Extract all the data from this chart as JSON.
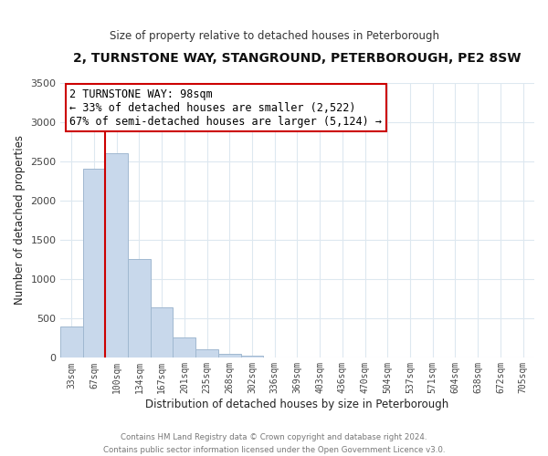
{
  "title": "2, TURNSTONE WAY, STANGROUND, PETERBOROUGH, PE2 8SW",
  "subtitle": "Size of property relative to detached houses in Peterborough",
  "xlabel": "Distribution of detached houses by size in Peterborough",
  "ylabel": "Number of detached properties",
  "footer_line1": "Contains HM Land Registry data © Crown copyright and database right 2024.",
  "footer_line2": "Contains public sector information licensed under the Open Government Licence v3.0.",
  "categories": [
    "33sqm",
    "67sqm",
    "100sqm",
    "134sqm",
    "167sqm",
    "201sqm",
    "235sqm",
    "268sqm",
    "302sqm",
    "336sqm",
    "369sqm",
    "403sqm",
    "436sqm",
    "470sqm",
    "504sqm",
    "537sqm",
    "571sqm",
    "604sqm",
    "638sqm",
    "672sqm",
    "705sqm"
  ],
  "bar_values": [
    400,
    2400,
    2600,
    1250,
    640,
    260,
    100,
    50,
    20,
    0,
    0,
    0,
    0,
    0,
    0,
    0,
    0,
    0,
    0,
    0,
    0
  ],
  "bar_color": "#c8d8eb",
  "bar_edge_color": "#a0b8d0",
  "vline_color": "#cc0000",
  "ylim": [
    0,
    3500
  ],
  "yticks": [
    0,
    500,
    1000,
    1500,
    2000,
    2500,
    3000,
    3500
  ],
  "annotation_text": "2 TURNSTONE WAY: 98sqm\n← 33% of detached houses are smaller (2,522)\n67% of semi-detached houses are larger (5,124) →",
  "annotation_box_facecolor": "white",
  "annotation_box_edgecolor": "#cc0000",
  "bg_color": "#ffffff",
  "plot_bg_color": "#ffffff",
  "grid_color": "#dde8f0",
  "title_color": "#111111",
  "subtitle_color": "#333333",
  "axis_label_color": "#222222",
  "tick_color": "#444444",
  "footer_color": "#777777"
}
